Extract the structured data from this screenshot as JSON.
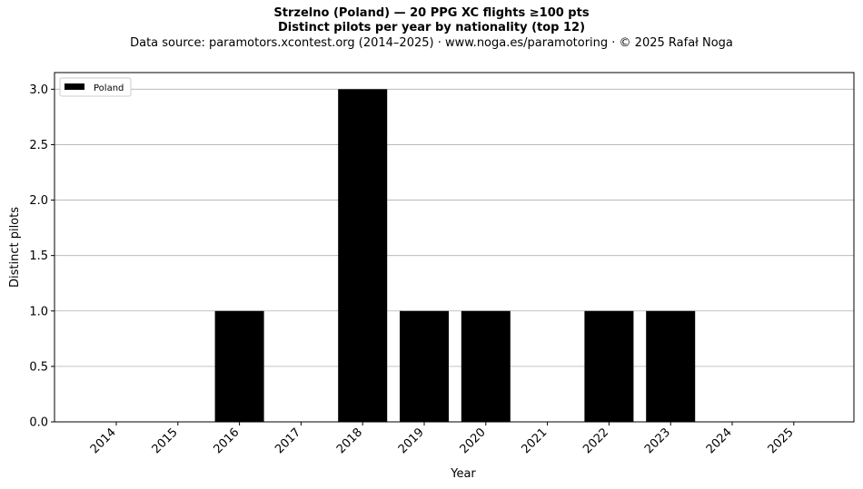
{
  "chart_data": {
    "type": "bar",
    "title": "Strzelno (Poland)  —  20 PPG XC flights ≥100 pts",
    "subtitle": "Distinct pilots per year by nationality (top 12)",
    "source": "Data source: paramotors.xcontest.org (2014–2025)  ·  www.noga.es/paramotoring  ·  © 2025 Rafał Noga",
    "xlabel": "Year",
    "ylabel": "Distinct pilots",
    "categories": [
      "2014",
      "2015",
      "2016",
      "2017",
      "2018",
      "2019",
      "2020",
      "2021",
      "2022",
      "2023",
      "2024",
      "2025"
    ],
    "series": [
      {
        "name": "Poland",
        "color": "#000000",
        "values": [
          0,
          0,
          1,
          0,
          3,
          1,
          1,
          0,
          1,
          1,
          0,
          0
        ]
      }
    ],
    "yticks": [
      "0.0",
      "0.5",
      "1.0",
      "1.5",
      "2.0",
      "2.5",
      "3.0"
    ],
    "ylim": [
      0,
      3.15
    ],
    "grid": "y",
    "legend_position": "top-left"
  }
}
